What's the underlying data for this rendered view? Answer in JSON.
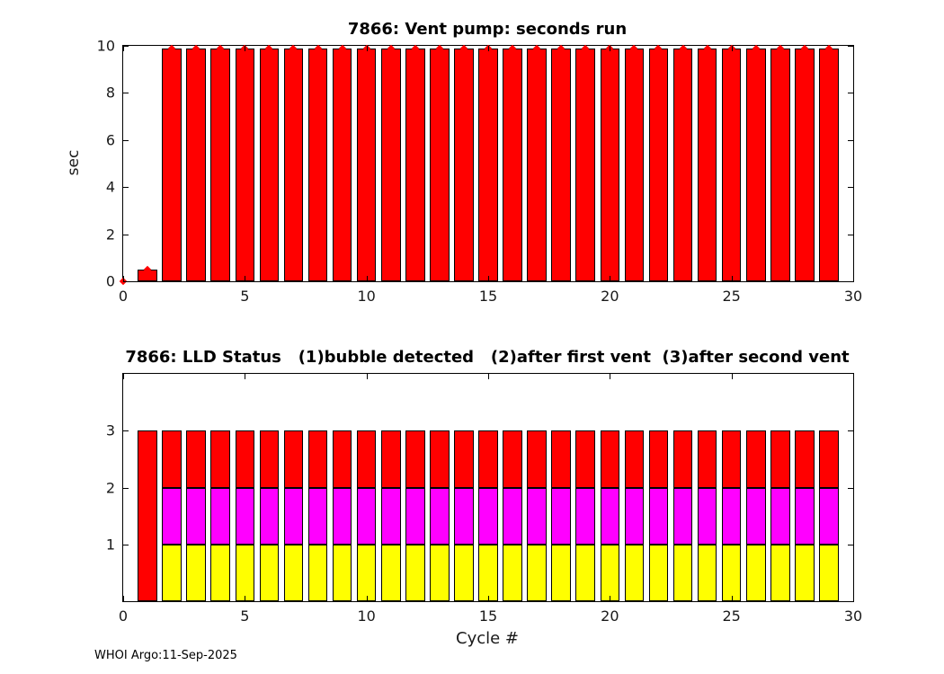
{
  "footer": "WHOI Argo:11-Sep-2025",
  "chart_data": [
    {
      "type": "bar",
      "title": "7866: Vent pump: seconds run",
      "xlabel": "",
      "ylabel": "sec",
      "xlim": [
        0,
        30
      ],
      "ylim": [
        0,
        10
      ],
      "xticks": [
        0,
        5,
        10,
        15,
        20,
        25,
        30
      ],
      "yticks": [
        0,
        2,
        4,
        6,
        8,
        10
      ],
      "grid": false,
      "legend": "none",
      "bar_width": 0.8,
      "bar_color": "#ff0000",
      "marker": "diamond",
      "marker_color": "#ff0000",
      "x": [
        0,
        1,
        2,
        3,
        4,
        5,
        6,
        7,
        8,
        9,
        10,
        11,
        12,
        13,
        14,
        15,
        16,
        17,
        18,
        19,
        20,
        21,
        22,
        23,
        24,
        25,
        26,
        27,
        28,
        29
      ],
      "values": [
        0,
        0.5,
        9.9,
        9.9,
        9.9,
        9.9,
        9.9,
        9.9,
        9.9,
        9.9,
        9.9,
        9.9,
        9.9,
        9.9,
        9.9,
        9.9,
        9.9,
        9.9,
        9.9,
        9.9,
        9.9,
        9.9,
        9.9,
        9.9,
        9.9,
        9.9,
        9.9,
        9.9,
        9.9,
        9.9
      ]
    },
    {
      "type": "bar",
      "stacked": true,
      "title": "7866: LLD Status   (1)bubble detected   (2)after first vent  (3)after second vent",
      "xlabel": "Cycle #",
      "ylabel": "",
      "xlim": [
        0,
        30
      ],
      "ylim": [
        0,
        4
      ],
      "xticks": [
        0,
        5,
        10,
        15,
        20,
        25,
        30
      ],
      "yticks": [
        1,
        2,
        3
      ],
      "grid": false,
      "legend": "none",
      "bar_width": 0.8,
      "x": [
        1,
        2,
        3,
        4,
        5,
        6,
        7,
        8,
        9,
        10,
        11,
        12,
        13,
        14,
        15,
        16,
        17,
        18,
        19,
        20,
        21,
        22,
        23,
        24,
        25,
        26,
        27,
        28,
        29
      ],
      "series": [
        {
          "name": "bubble detected",
          "color": "#ffff00",
          "values": [
            0,
            1,
            1,
            1,
            1,
            1,
            1,
            1,
            1,
            1,
            1,
            1,
            1,
            1,
            1,
            1,
            1,
            1,
            1,
            1,
            1,
            1,
            1,
            1,
            1,
            1,
            1,
            1,
            1
          ]
        },
        {
          "name": "after first vent",
          "color": "#ff00ff",
          "values": [
            0,
            1,
            1,
            1,
            1,
            1,
            1,
            1,
            1,
            1,
            1,
            1,
            1,
            1,
            1,
            1,
            1,
            1,
            1,
            1,
            1,
            1,
            1,
            1,
            1,
            1,
            1,
            1,
            1
          ]
        },
        {
          "name": "after second vent",
          "color": "#ff0000",
          "values": [
            3,
            1,
            1,
            1,
            1,
            1,
            1,
            1,
            1,
            1,
            1,
            1,
            1,
            1,
            1,
            1,
            1,
            1,
            1,
            1,
            1,
            1,
            1,
            1,
            1,
            1,
            1,
            1,
            1
          ]
        }
      ]
    }
  ]
}
